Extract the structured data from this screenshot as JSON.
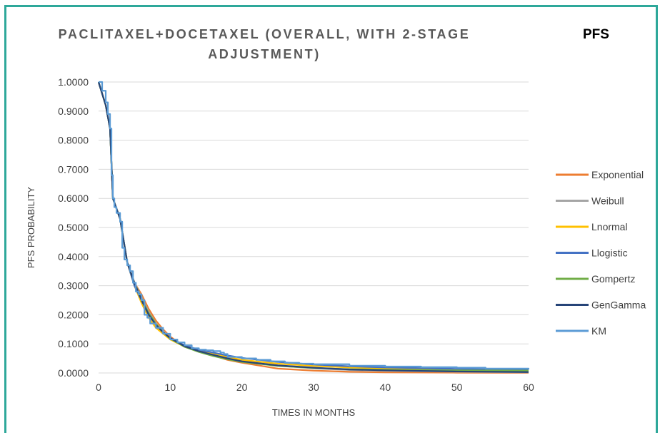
{
  "header": {
    "title_line1": "PACLITAXEL+DOCETAXEL (OVERALL, WITH 2-STAGE",
    "title_line2": "ADJUSTMENT)",
    "side_title": "PFS"
  },
  "chart_data": {
    "type": "line",
    "title": "PACLITAXEL+DOCETAXEL (OVERALL, WITH 2-STAGE ADJUSTMENT)",
    "xlabel": "TIMES IN MONTHS",
    "ylabel": "PFS PROBABILITY",
    "xlim": [
      0,
      60
    ],
    "ylim": [
      0,
      1
    ],
    "x_ticks": [
      "0",
      "10",
      "20",
      "30",
      "40",
      "50",
      "60"
    ],
    "y_ticks": [
      "0.0000",
      "0.1000",
      "0.2000",
      "0.3000",
      "0.4000",
      "0.5000",
      "0.6000",
      "0.7000",
      "0.8000",
      "0.9000",
      "1.0000"
    ],
    "grid": "horizontal",
    "legend": "right",
    "series": [
      {
        "name": "Exponential",
        "color": "#ed7d31",
        "x": [
          0,
          1,
          1.6,
          2,
          3,
          4,
          5,
          6,
          7,
          8,
          9,
          10,
          12,
          14,
          16,
          18,
          20,
          25,
          30,
          35,
          40,
          50,
          60
        ],
        "y": [
          1,
          0.92,
          0.84,
          0.6,
          0.53,
          0.38,
          0.31,
          0.27,
          0.22,
          0.18,
          0.15,
          0.125,
          0.09,
          0.075,
          0.06,
          0.045,
          0.035,
          0.015,
          0.008,
          0.004,
          0.002,
          0.001,
          0.0005
        ]
      },
      {
        "name": "Weibull",
        "color": "#a5a5a5",
        "x": [
          0,
          1,
          1.6,
          2,
          3,
          4,
          5,
          6,
          7,
          8,
          9,
          10,
          12,
          14,
          16,
          18,
          20,
          25,
          30,
          35,
          40,
          50,
          60
        ],
        "y": [
          1,
          0.92,
          0.84,
          0.6,
          0.53,
          0.38,
          0.31,
          0.26,
          0.21,
          0.17,
          0.145,
          0.12,
          0.09,
          0.075,
          0.062,
          0.05,
          0.04,
          0.025,
          0.016,
          0.01,
          0.007,
          0.004,
          0.002
        ]
      },
      {
        "name": "Lnormal",
        "color": "#ffc000",
        "x": [
          0,
          1,
          1.6,
          2,
          3,
          4,
          5,
          6,
          7,
          8,
          9,
          10,
          12,
          14,
          16,
          18,
          20,
          25,
          30,
          35,
          40,
          50,
          60
        ],
        "y": [
          1,
          0.92,
          0.84,
          0.6,
          0.53,
          0.38,
          0.3,
          0.24,
          0.19,
          0.155,
          0.135,
          0.115,
          0.09,
          0.075,
          0.065,
          0.055,
          0.045,
          0.032,
          0.024,
          0.019,
          0.015,
          0.01,
          0.007
        ]
      },
      {
        "name": "Llogistic",
        "color": "#4472c4",
        "x": [
          0,
          1,
          1.6,
          2,
          3,
          4,
          5,
          6,
          7,
          8,
          9,
          10,
          12,
          14,
          16,
          18,
          20,
          25,
          30,
          35,
          40,
          50,
          60
        ],
        "y": [
          1,
          0.92,
          0.84,
          0.6,
          0.53,
          0.38,
          0.3,
          0.25,
          0.2,
          0.165,
          0.14,
          0.12,
          0.095,
          0.08,
          0.07,
          0.06,
          0.052,
          0.038,
          0.029,
          0.023,
          0.019,
          0.014,
          0.011
        ]
      },
      {
        "name": "Gompertz",
        "color": "#70ad47",
        "x": [
          0,
          1,
          1.6,
          2,
          3,
          4,
          5,
          6,
          7,
          8,
          9,
          10,
          12,
          14,
          16,
          18,
          20,
          25,
          30,
          35,
          40,
          50,
          60
        ],
        "y": [
          1,
          0.92,
          0.84,
          0.6,
          0.53,
          0.38,
          0.31,
          0.255,
          0.205,
          0.17,
          0.14,
          0.118,
          0.09,
          0.072,
          0.058,
          0.047,
          0.038,
          0.024,
          0.017,
          0.013,
          0.011,
          0.009,
          0.008
        ]
      },
      {
        "name": "GenGamma",
        "color": "#264478",
        "x": [
          0,
          1,
          1.6,
          2,
          3,
          4,
          5,
          6,
          7,
          8,
          9,
          10,
          12,
          14,
          16,
          18,
          20,
          25,
          30,
          35,
          40,
          50,
          60
        ],
        "y": [
          1,
          0.92,
          0.84,
          0.6,
          0.53,
          0.38,
          0.31,
          0.25,
          0.2,
          0.165,
          0.14,
          0.12,
          0.092,
          0.075,
          0.062,
          0.05,
          0.04,
          0.026,
          0.018,
          0.012,
          0.009,
          0.005,
          0.003
        ]
      },
      {
        "name": "KM",
        "color": "#5b9bd5",
        "step": true,
        "x": [
          0,
          0.5,
          1,
          1.3,
          1.6,
          1.8,
          2,
          2.2,
          2.5,
          3,
          3.3,
          3.6,
          4,
          4.4,
          4.8,
          5.2,
          5.6,
          6,
          6.4,
          6.8,
          7.2,
          8,
          9,
          10,
          11,
          12,
          13,
          14,
          15,
          16,
          17,
          17.5,
          18,
          20,
          22,
          24,
          26,
          28,
          30,
          35,
          40,
          45,
          50,
          54,
          60
        ],
        "y": [
          1,
          0.97,
          0.93,
          0.89,
          0.84,
          0.68,
          0.6,
          0.57,
          0.55,
          0.52,
          0.43,
          0.39,
          0.37,
          0.35,
          0.31,
          0.28,
          0.27,
          0.25,
          0.2,
          0.19,
          0.17,
          0.155,
          0.135,
          0.115,
          0.105,
          0.095,
          0.085,
          0.08,
          0.078,
          0.075,
          0.07,
          0.065,
          0.055,
          0.05,
          0.045,
          0.04,
          0.035,
          0.032,
          0.03,
          0.025,
          0.022,
          0.02,
          0.018,
          0.015,
          0.012
        ]
      }
    ]
  }
}
